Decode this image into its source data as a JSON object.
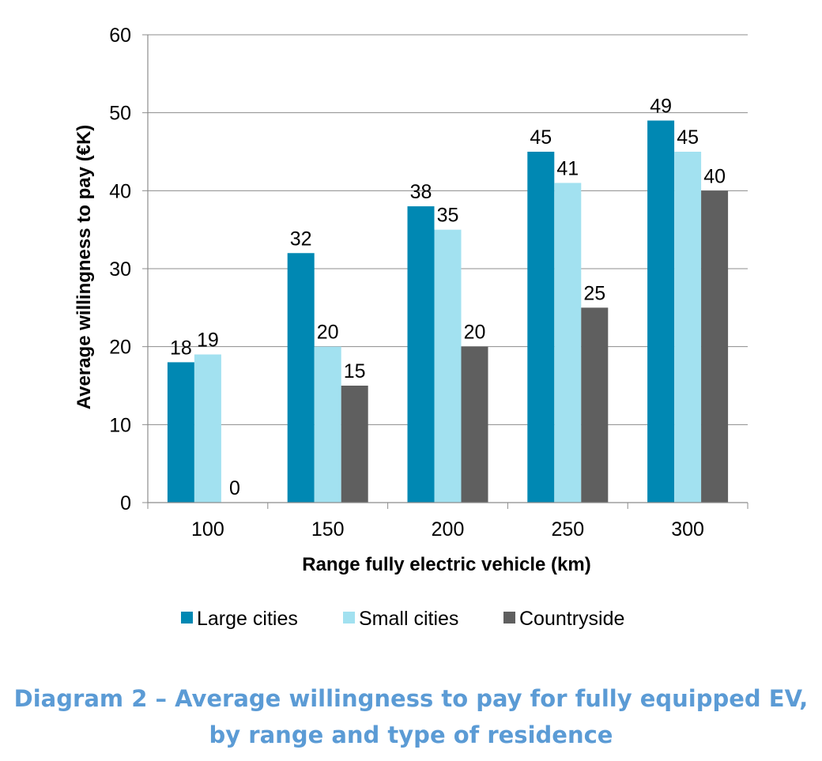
{
  "chart_data": {
    "type": "bar",
    "categories": [
      "100",
      "150",
      "200",
      "250",
      "300"
    ],
    "series": [
      {
        "name": "Large cities",
        "color": "#0088b3",
        "values": [
          18,
          32,
          38,
          45,
          49
        ]
      },
      {
        "name": "Small cities",
        "color": "#a2e1f0",
        "values": [
          19,
          20,
          35,
          41,
          45
        ]
      },
      {
        "name": "Countryside",
        "color": "#5f5f5f",
        "values": [
          0,
          15,
          20,
          25,
          40
        ]
      }
    ],
    "data_labels": true,
    "xlabel": "Range fully electric vehicle (km)",
    "ylabel": "Average willingness to pay (€K)",
    "ylim": [
      0,
      60
    ],
    "yticks": [
      0,
      10,
      20,
      30,
      40,
      50,
      60
    ],
    "grid": true,
    "legend_position": "bottom"
  },
  "caption": {
    "line1": "Diagram 2 – Average willingness to pay for fully equipped EV,",
    "line2": "by range and type of residence"
  }
}
